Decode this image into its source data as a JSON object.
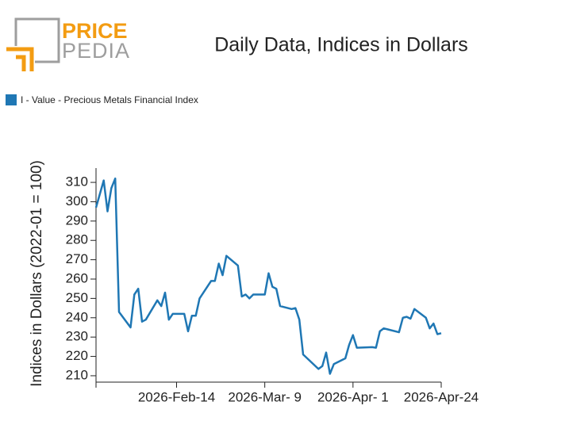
{
  "logo": {
    "top": "PRICE",
    "bottom": "PEDIA"
  },
  "chart_data": {
    "type": "line",
    "title": "Daily Data, Indices in Dollars",
    "y_label": "Indices in Dollars (2022-01 = 100)",
    "x": [
      "2026-01-24",
      "2026-01-26",
      "2026-01-27",
      "2026-01-28",
      "2026-01-29",
      "2026-01-30",
      "2026-02-02",
      "2026-02-03",
      "2026-02-04",
      "2026-02-05",
      "2026-02-06",
      "2026-02-09",
      "2026-02-10",
      "2026-02-11",
      "2026-02-12",
      "2026-02-13",
      "2026-02-16",
      "2026-02-17",
      "2026-02-18",
      "2026-02-19",
      "2026-02-20",
      "2026-02-23",
      "2026-02-24",
      "2026-02-25",
      "2026-02-26",
      "2026-02-27",
      "2026-03-02",
      "2026-03-03",
      "2026-03-04",
      "2026-03-05",
      "2026-03-06",
      "2026-03-09",
      "2026-03-10",
      "2026-03-11",
      "2026-03-12",
      "2026-03-13",
      "2026-03-16",
      "2026-03-17",
      "2026-03-18",
      "2026-03-19",
      "2026-03-23",
      "2026-03-24",
      "2026-03-25",
      "2026-03-26",
      "2026-03-27",
      "2026-03-30",
      "2026-03-31",
      "2026-04-01",
      "2026-04-02",
      "2026-04-06",
      "2026-04-07",
      "2026-04-08",
      "2026-04-09",
      "2026-04-10",
      "2026-04-13",
      "2026-04-14",
      "2026-04-15",
      "2026-04-16",
      "2026-04-17",
      "2026-04-20",
      "2026-04-21",
      "2026-04-22",
      "2026-04-23",
      "2026-04-24"
    ],
    "series": [
      {
        "name": "I - Value - Precious Metals Financial Index",
        "color": "#1f77b4",
        "values": [
          297,
          311,
          295,
          307,
          312,
          243,
          235,
          252,
          255,
          238,
          239,
          249,
          246,
          253,
          239,
          242,
          242,
          233,
          241,
          241,
          250,
          259,
          259,
          268,
          262,
          272,
          267,
          251,
          252,
          250,
          252,
          252,
          263,
          256,
          255,
          246,
          244.5,
          245,
          239,
          221,
          213.5,
          215,
          222,
          211,
          216,
          219,
          226,
          231,
          224.5,
          224.8,
          224.5,
          233,
          234.5,
          234,
          232.5,
          240,
          240.5,
          239.5,
          244.5,
          240,
          234.5,
          237,
          231.5,
          232
        ]
      }
    ],
    "xlim": [
      "2026-01-24",
      "2026-04-24"
    ],
    "xticks": [
      {
        "value": "2026-02-14",
        "label": "2026-Feb-14"
      },
      {
        "value": "2026-03-09",
        "label": "2026-Mar- 9"
      },
      {
        "value": "2026-04-01",
        "label": "2026-Apr- 1"
      },
      {
        "value": "2026-04-24",
        "label": "2026-Apr-24"
      }
    ],
    "ylim": [
      206.7,
      317.4
    ],
    "yticks": [
      210,
      220,
      230,
      240,
      250,
      260,
      270,
      280,
      290,
      300,
      310
    ],
    "legend": "top-left",
    "grid": false
  }
}
